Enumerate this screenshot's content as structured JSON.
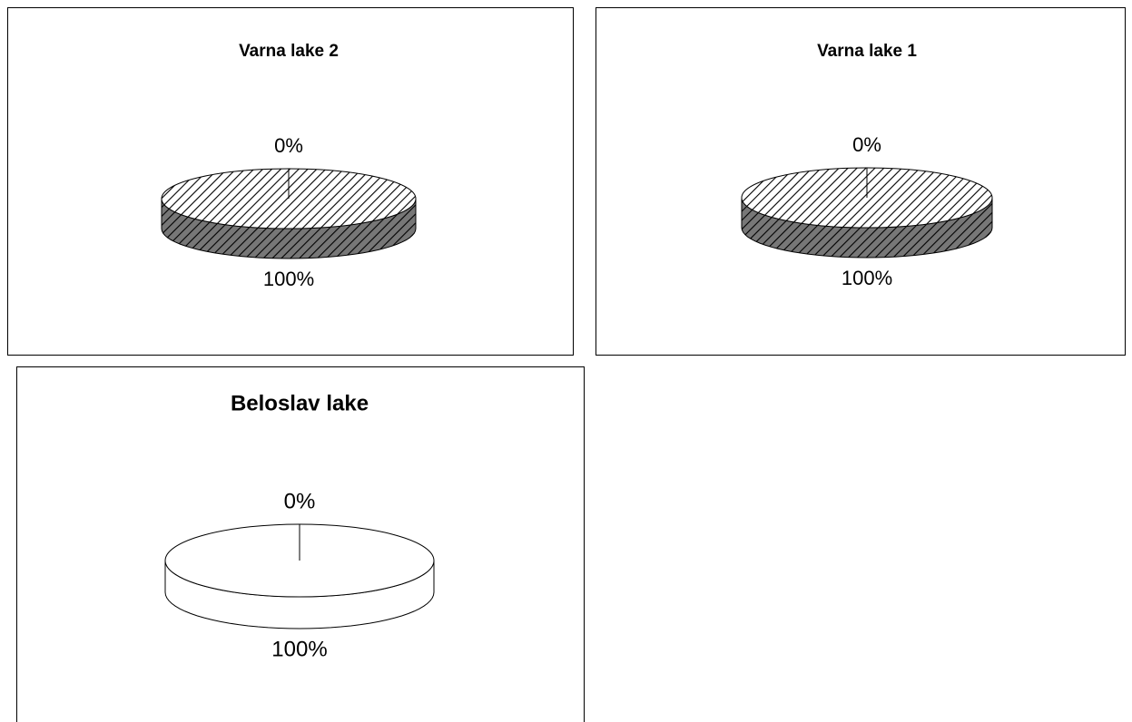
{
  "chart_data": [
    {
      "type": "pie",
      "title": "Varna lake 2",
      "values": [
        0,
        100
      ],
      "value_labels": [
        "0%",
        "100%"
      ],
      "fill": "hatch"
    },
    {
      "type": "pie",
      "title": "Varna lake 1",
      "values": [
        0,
        100
      ],
      "value_labels": [
        "0%",
        "100%"
      ],
      "fill": "hatch"
    },
    {
      "type": "pie",
      "title": "Beloslav lake",
      "values": [
        0,
        100
      ],
      "value_labels": [
        "0%",
        "100%"
      ],
      "fill": "plain"
    }
  ]
}
